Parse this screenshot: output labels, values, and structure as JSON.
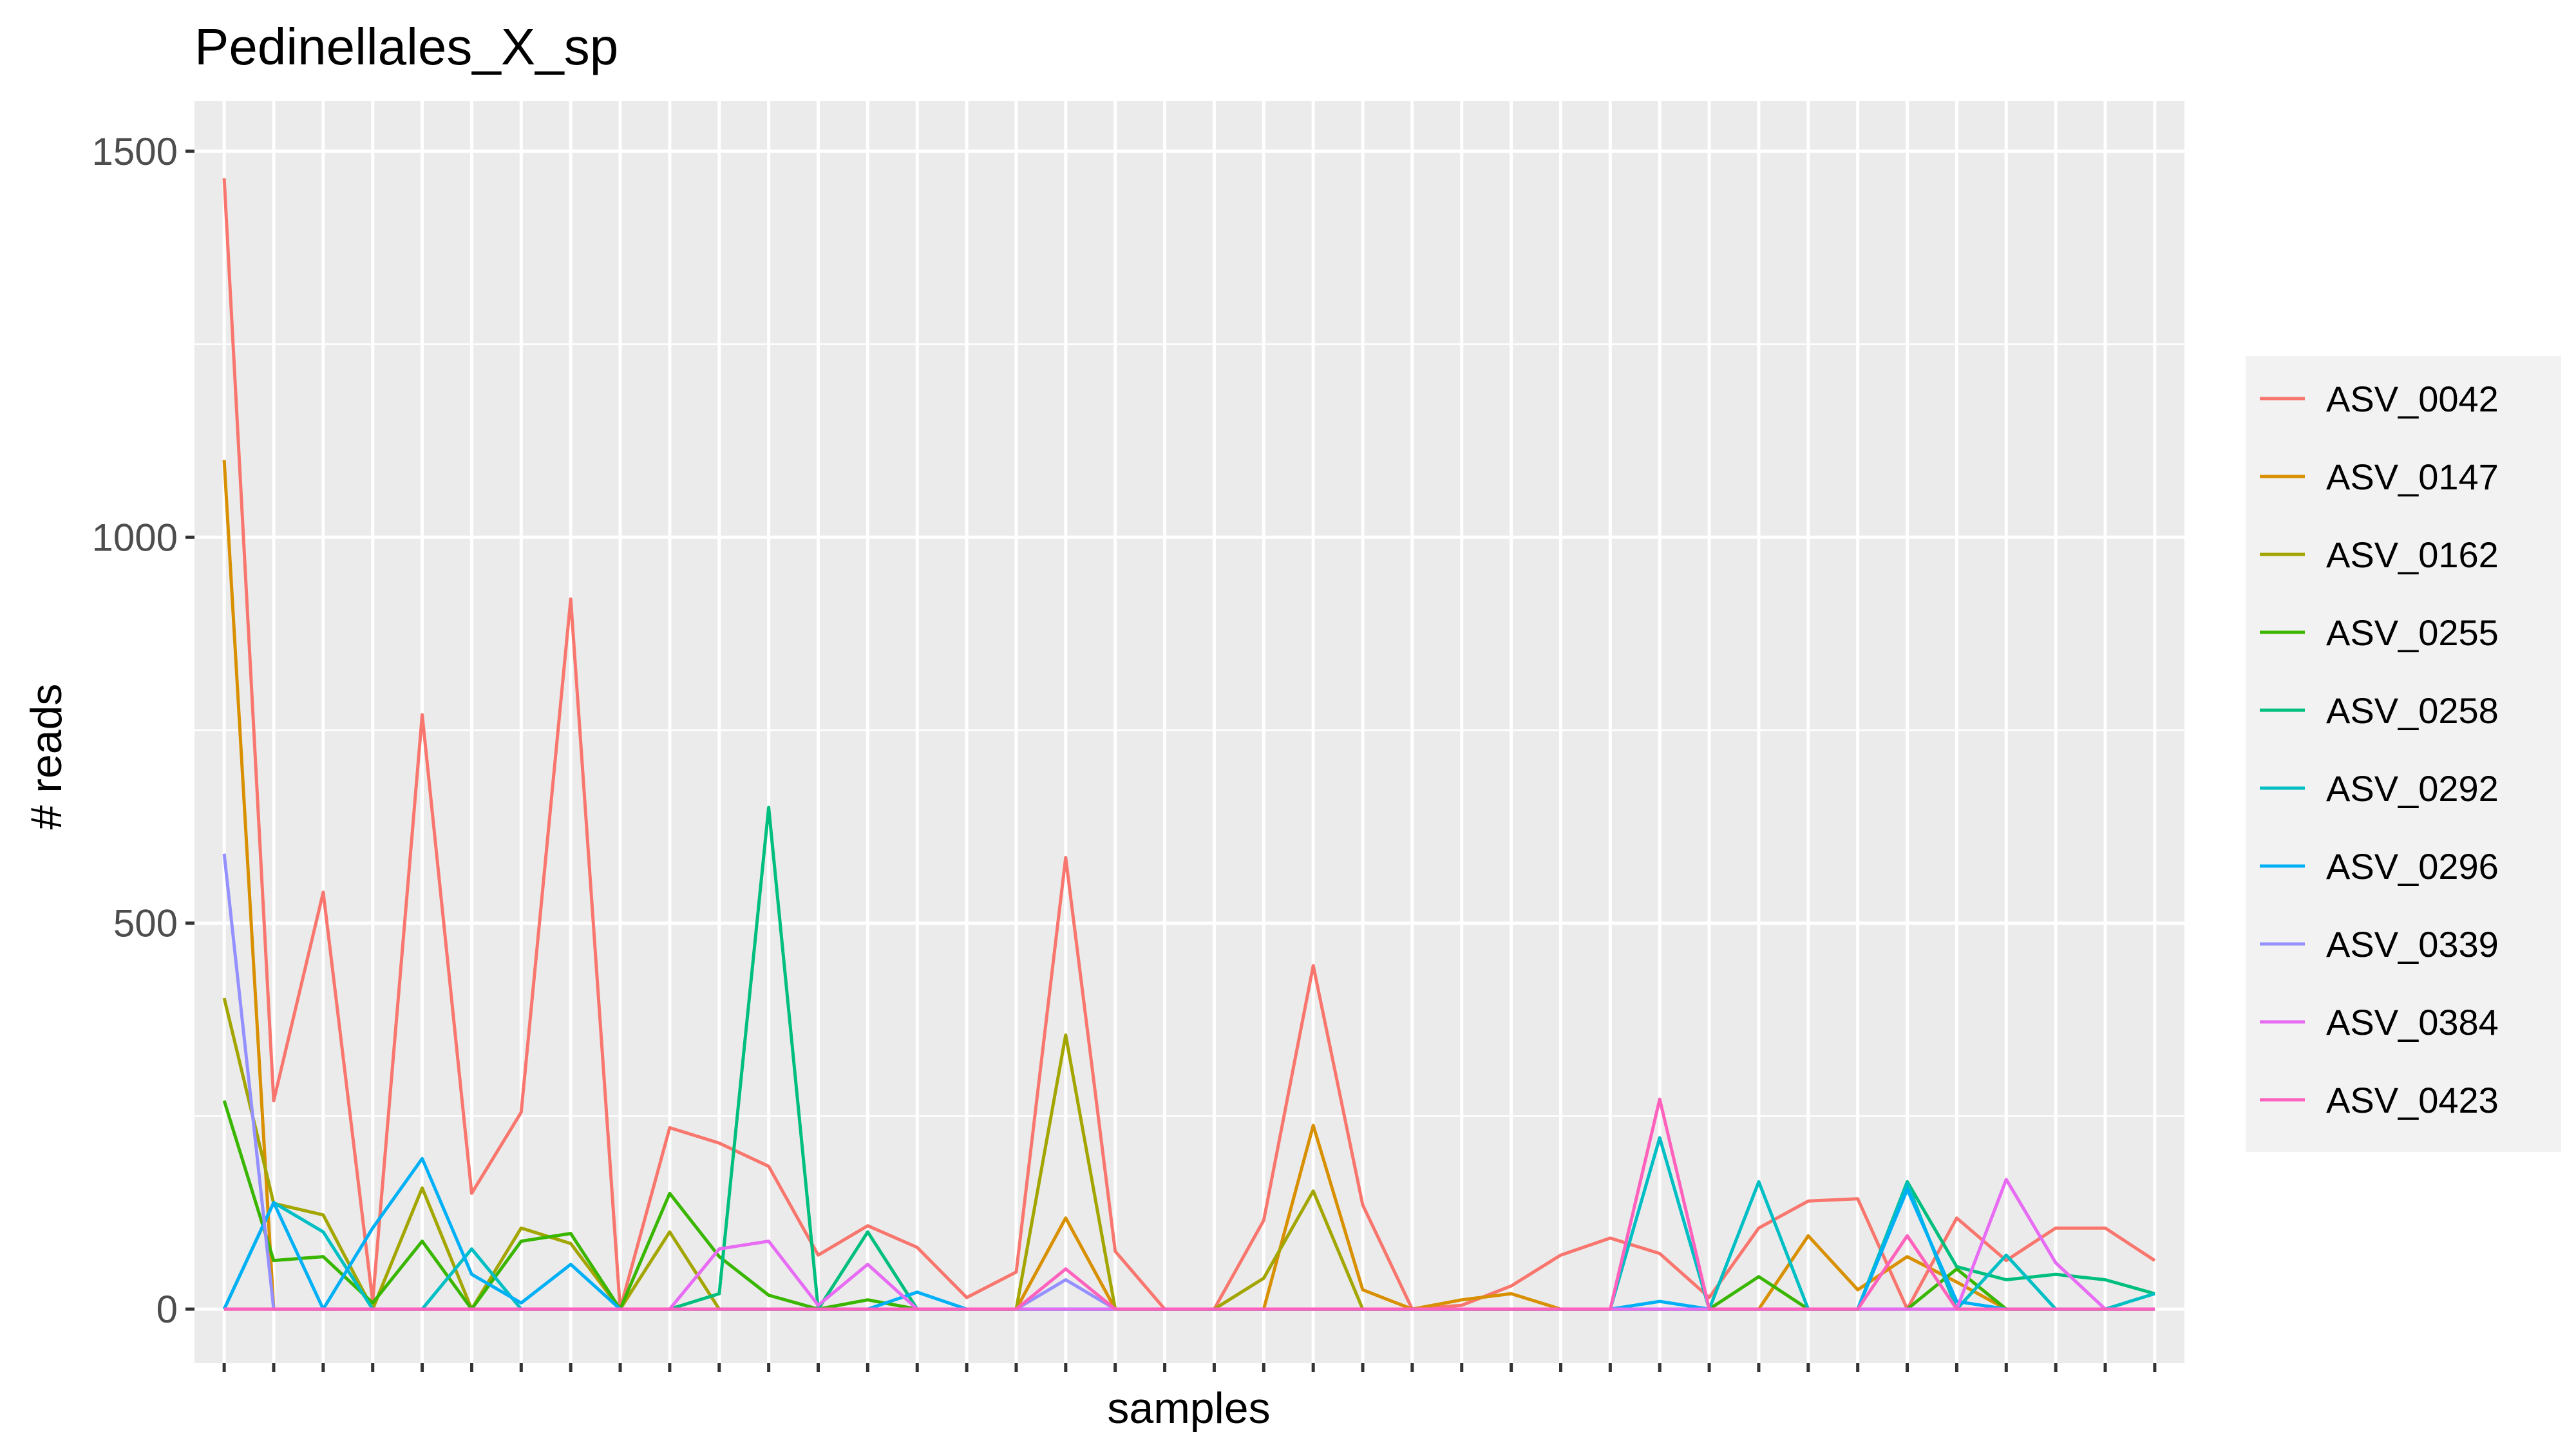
{
  "chart_data": {
    "type": "line",
    "title": "Pedinellales_X_sp",
    "xlabel": "samples",
    "ylabel": "# reads",
    "ylim": [
      -70,
      1565
    ],
    "y_ticks": [
      0,
      500,
      1000,
      1500
    ],
    "x_tick_labels_shown": false,
    "n_samples": 40,
    "grid": true,
    "legend_position": "right",
    "panel_background": "#EBEBEB",
    "series": [
      {
        "name": "ASV_0042",
        "color": "#F8766D",
        "values": [
          1465,
          270,
          540,
          10,
          770,
          150,
          255,
          920,
          0,
          235,
          215,
          185,
          70,
          108,
          80,
          15,
          48,
          585,
          75,
          0,
          0,
          115,
          445,
          135,
          0,
          5,
          30,
          70,
          92,
          72,
          15,
          105,
          140,
          143,
          0,
          118,
          63,
          105,
          105,
          63
        ]
      },
      {
        "name": "ASV_0147",
        "color": "#D89000",
        "values": [
          1100,
          0,
          0,
          0,
          0,
          0,
          0,
          0,
          0,
          0,
          0,
          0,
          0,
          0,
          0,
          0,
          0,
          118,
          0,
          0,
          0,
          0,
          238,
          25,
          0,
          12,
          20,
          0,
          0,
          0,
          0,
          0,
          95,
          25,
          68,
          35,
          0,
          0,
          0,
          0
        ]
      },
      {
        "name": "ASV_0162",
        "color": "#A3A500",
        "values": [
          403,
          137,
          122,
          0,
          157,
          0,
          105,
          85,
          0,
          100,
          0,
          0,
          0,
          0,
          0,
          0,
          0,
          355,
          0,
          0,
          0,
          40,
          153,
          0,
          0,
          0,
          0,
          0,
          0,
          0,
          0,
          0,
          0,
          0,
          0,
          0,
          0,
          0,
          0,
          0
        ]
      },
      {
        "name": "ASV_0255",
        "color": "#39B600",
        "values": [
          270,
          63,
          68,
          8,
          88,
          0,
          88,
          98,
          0,
          150,
          68,
          18,
          0,
          12,
          0,
          0,
          0,
          0,
          0,
          0,
          0,
          0,
          0,
          0,
          0,
          0,
          0,
          0,
          0,
          0,
          0,
          42,
          0,
          0,
          0,
          52,
          0,
          0,
          0,
          0
        ]
      },
      {
        "name": "ASV_0258",
        "color": "#00BF7D",
        "values": [
          0,
          0,
          0,
          0,
          0,
          0,
          0,
          0,
          0,
          0,
          20,
          650,
          0,
          100,
          0,
          0,
          0,
          0,
          0,
          0,
          0,
          0,
          0,
          0,
          0,
          0,
          0,
          0,
          0,
          0,
          0,
          0,
          0,
          0,
          165,
          55,
          38,
          45,
          38,
          20
        ]
      },
      {
        "name": "ASV_0292",
        "color": "#00BFC4",
        "values": [
          0,
          138,
          100,
          0,
          0,
          78,
          0,
          0,
          0,
          0,
          0,
          0,
          0,
          0,
          0,
          0,
          0,
          0,
          0,
          0,
          0,
          0,
          0,
          0,
          0,
          0,
          0,
          0,
          0,
          222,
          0,
          165,
          0,
          0,
          163,
          0,
          70,
          0,
          0,
          20
        ]
      },
      {
        "name": "ASV_0296",
        "color": "#00B0F6",
        "values": [
          0,
          138,
          0,
          105,
          195,
          45,
          8,
          58,
          0,
          0,
          0,
          0,
          0,
          0,
          22,
          0,
          0,
          0,
          0,
          0,
          0,
          0,
          0,
          0,
          0,
          0,
          0,
          0,
          0,
          10,
          0,
          0,
          0,
          0,
          155,
          10,
          0,
          0,
          0,
          0
        ]
      },
      {
        "name": "ASV_0339",
        "color": "#9590FF",
        "values": [
          590,
          0,
          0,
          0,
          0,
          0,
          0,
          0,
          0,
          0,
          0,
          0,
          0,
          0,
          0,
          0,
          0,
          38,
          0,
          0,
          0,
          0,
          0,
          0,
          0,
          0,
          0,
          0,
          0,
          0,
          0,
          0,
          0,
          0,
          0,
          0,
          0,
          0,
          0,
          0
        ]
      },
      {
        "name": "ASV_0384",
        "color": "#E76BF3",
        "values": [
          0,
          0,
          0,
          0,
          0,
          0,
          0,
          0,
          0,
          0,
          78,
          88,
          5,
          58,
          0,
          0,
          0,
          0,
          0,
          0,
          0,
          0,
          0,
          0,
          0,
          0,
          0,
          0,
          0,
          0,
          0,
          0,
          0,
          0,
          0,
          0,
          168,
          60,
          0,
          0
        ]
      },
      {
        "name": "ASV_0423",
        "color": "#FF62BC",
        "values": [
          0,
          0,
          0,
          0,
          0,
          0,
          0,
          0,
          0,
          0,
          0,
          0,
          0,
          0,
          0,
          0,
          0,
          52,
          0,
          0,
          0,
          0,
          0,
          0,
          0,
          0,
          0,
          0,
          0,
          272,
          0,
          0,
          0,
          0,
          95,
          0,
          0,
          0,
          0,
          0
        ]
      }
    ]
  }
}
